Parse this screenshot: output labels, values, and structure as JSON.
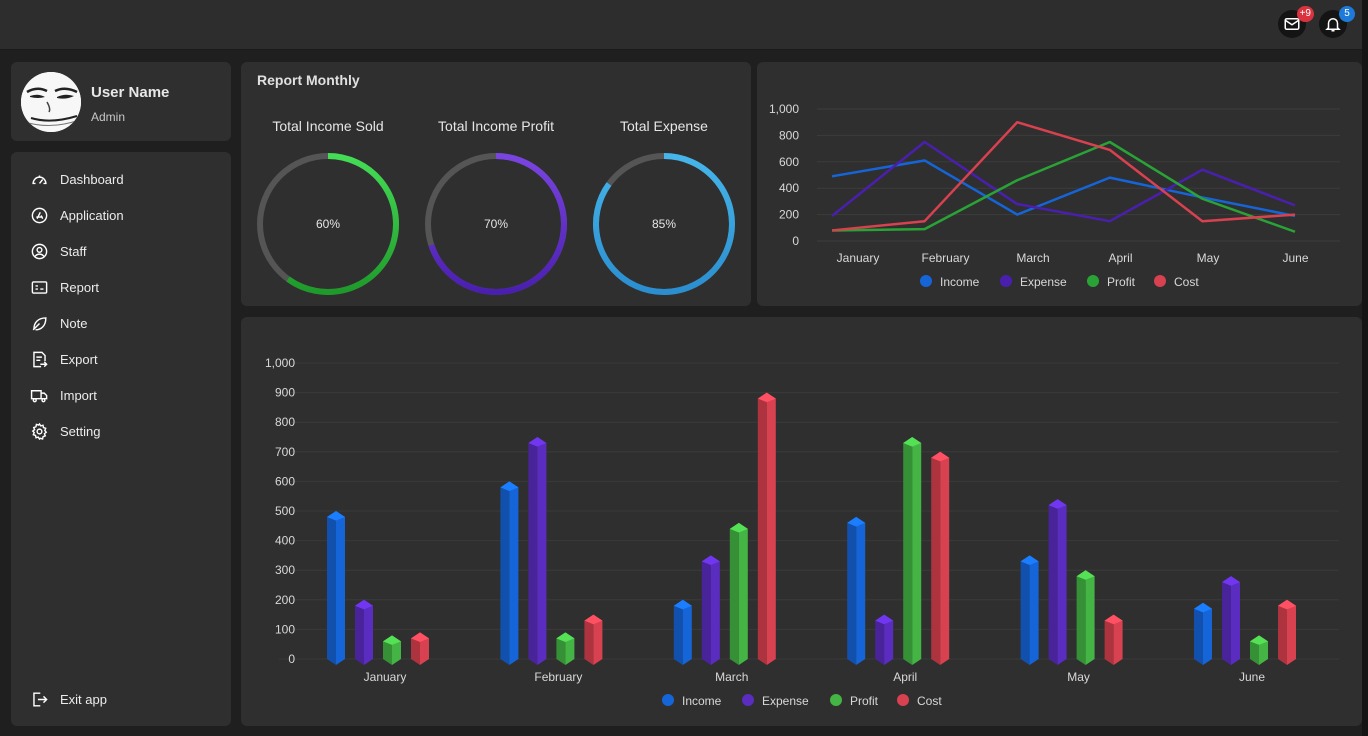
{
  "header": {
    "mail_badge": "+9",
    "bell_badge": "5",
    "mail_icon": "mail-icon",
    "bell_icon": "bell-icon"
  },
  "profile": {
    "name": "User Name",
    "role": "Admin"
  },
  "sidebar": {
    "items": [
      {
        "label": "Dashboard",
        "icon": "gauge-icon"
      },
      {
        "label": "Application",
        "icon": "app-store-icon"
      },
      {
        "label": "Staff",
        "icon": "user-circle-icon"
      },
      {
        "label": "Report",
        "icon": "report-card-icon"
      },
      {
        "label": "Note",
        "icon": "leaf-icon"
      },
      {
        "label": "Export",
        "icon": "export-icon"
      },
      {
        "label": "Import",
        "icon": "truck-icon"
      },
      {
        "label": "Setting",
        "icon": "gear-icon"
      }
    ],
    "exit_label": "Exit app"
  },
  "report": {
    "title": "Report Monthly",
    "donuts": [
      {
        "label": "Total Income Sold",
        "value": "60%",
        "percent": 60,
        "color_start": "#44dd55",
        "color_end": "#1e9a2a"
      },
      {
        "label": "Total Income Profit",
        "value": "70%",
        "percent": 70,
        "color_start": "#7a44e0",
        "color_end": "#4a1fb0"
      },
      {
        "label": "Total Expense",
        "value": "85%",
        "percent": 85,
        "color_start": "#46b6ea",
        "color_end": "#2a8ed0"
      }
    ]
  },
  "colors": {
    "income": "#1565d8",
    "expense": "#5a2cc0",
    "profit": "#2aa336",
    "cost": "#d8414f"
  },
  "chart_data": [
    {
      "type": "line",
      "categories": [
        "January",
        "February",
        "March",
        "April",
        "May",
        "June"
      ],
      "y_ticks": [
        "0",
        "200",
        "400",
        "600",
        "800",
        "1,000"
      ],
      "ylim": [
        0,
        1000
      ],
      "grid": true,
      "legend": "bottom",
      "series": [
        {
          "name": "Income",
          "color": "#1565d8",
          "values": [
            490,
            610,
            200,
            480,
            330,
            190
          ]
        },
        {
          "name": "Expense",
          "color": "#4a1fb0",
          "values": [
            190,
            750,
            280,
            150,
            540,
            270
          ]
        },
        {
          "name": "Profit",
          "color": "#2aa336",
          "values": [
            80,
            90,
            460,
            750,
            320,
            70
          ]
        },
        {
          "name": "Cost",
          "color": "#d8414f",
          "values": [
            80,
            150,
            900,
            690,
            150,
            200
          ]
        }
      ]
    },
    {
      "type": "bar",
      "categories": [
        "January",
        "February",
        "March",
        "April",
        "May",
        "June"
      ],
      "y_ticks": [
        "0",
        "100",
        "200",
        "300",
        "400",
        "500",
        "600",
        "700",
        "800",
        "900",
        "1,000"
      ],
      "ylim": [
        0,
        1000
      ],
      "grid": true,
      "legend": "bottom",
      "series": [
        {
          "name": "Income",
          "color": "#1565d8",
          "values": [
            500,
            600,
            200,
            480,
            350,
            190
          ]
        },
        {
          "name": "Expense",
          "color": "#5a2cc0",
          "values": [
            200,
            750,
            350,
            150,
            540,
            280
          ]
        },
        {
          "name": "Profit",
          "color": "#44b444",
          "values": [
            80,
            90,
            460,
            750,
            300,
            80
          ]
        },
        {
          "name": "Cost",
          "color": "#d8414f",
          "values": [
            90,
            150,
            900,
            700,
            150,
            200
          ]
        }
      ]
    }
  ]
}
